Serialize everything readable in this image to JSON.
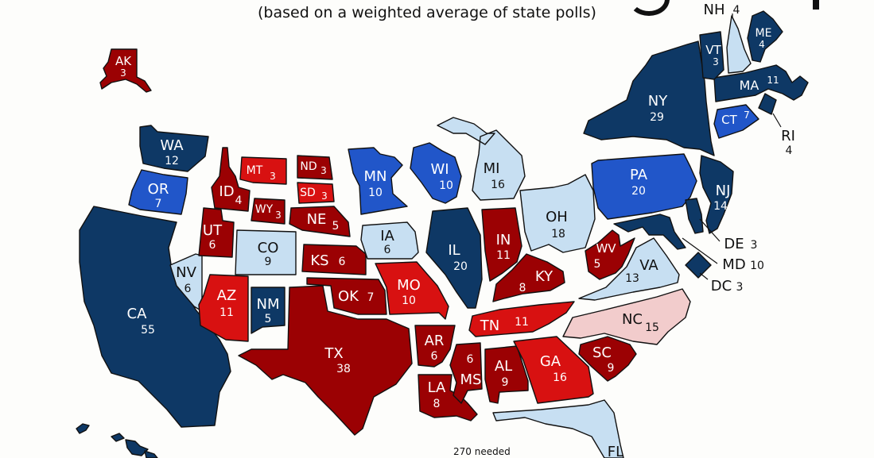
{
  "subtitle": "(based on a weighted average of state polls)",
  "footer": "270 needed",
  "legend_colors": {
    "safe_dem": "#0e3865",
    "likely_dem": "#2156c9",
    "lean_dem": "#c7dff2",
    "tossup_lean_rep": "#f2cccc",
    "likely_rep": "#d81111",
    "safe_rep": "#9b0103"
  },
  "states": {
    "AK": {
      "abbr": "AK",
      "ev": "3"
    },
    "WA": {
      "abbr": "WA",
      "ev": "12"
    },
    "OR": {
      "abbr": "OR",
      "ev": "7"
    },
    "CA": {
      "abbr": "CA",
      "ev": "55"
    },
    "NV": {
      "abbr": "NV",
      "ev": "6"
    },
    "ID": {
      "abbr": "ID",
      "ev": "4"
    },
    "MT": {
      "abbr": "MT",
      "ev": "3"
    },
    "WY": {
      "abbr": "WY",
      "ev": "3"
    },
    "UT": {
      "abbr": "UT",
      "ev": "6"
    },
    "CO": {
      "abbr": "CO",
      "ev": "9"
    },
    "AZ": {
      "abbr": "AZ",
      "ev": "11"
    },
    "NM": {
      "abbr": "NM",
      "ev": "5"
    },
    "ND": {
      "abbr": "ND",
      "ev": "3"
    },
    "SD": {
      "abbr": "SD",
      "ev": "3"
    },
    "NE": {
      "abbr": "NE",
      "ev": "5"
    },
    "KS": {
      "abbr": "KS",
      "ev": "6"
    },
    "OK": {
      "abbr": "OK",
      "ev": "7"
    },
    "TX": {
      "abbr": "TX",
      "ev": "38"
    },
    "MN": {
      "abbr": "MN",
      "ev": "10"
    },
    "IA": {
      "abbr": "IA",
      "ev": "6"
    },
    "MO": {
      "abbr": "MO",
      "ev": "10"
    },
    "AR": {
      "abbr": "AR",
      "ev": "6"
    },
    "LA": {
      "abbr": "LA",
      "ev": "8"
    },
    "WI": {
      "abbr": "WI",
      "ev": "10"
    },
    "IL": {
      "abbr": "IL",
      "ev": "20"
    },
    "MI": {
      "abbr": "MI",
      "ev": "16"
    },
    "IN": {
      "abbr": "IN",
      "ev": "11"
    },
    "OH": {
      "abbr": "OH",
      "ev": "18"
    },
    "KY": {
      "abbr": "KY",
      "ev": "8"
    },
    "TN": {
      "abbr": "TN",
      "ev": "11"
    },
    "MS": {
      "abbr": "MS",
      "ev": "6"
    },
    "AL": {
      "abbr": "AL",
      "ev": "9"
    },
    "GA": {
      "abbr": "GA",
      "ev": "16"
    },
    "FL": {
      "abbr": "FL",
      "ev": ""
    },
    "SC": {
      "abbr": "SC",
      "ev": "9"
    },
    "NC": {
      "abbr": "NC",
      "ev": "15"
    },
    "VA": {
      "abbr": "VA",
      "ev": "13"
    },
    "WV": {
      "abbr": "WV",
      "ev": "5"
    },
    "PA": {
      "abbr": "PA",
      "ev": "20"
    },
    "NY": {
      "abbr": "NY",
      "ev": "29"
    },
    "VT": {
      "abbr": "VT",
      "ev": "3"
    },
    "NH": {
      "abbr": "NH",
      "ev": "4"
    },
    "ME": {
      "abbr": "ME",
      "ev": "4"
    },
    "MA": {
      "abbr": "MA",
      "ev": "11"
    },
    "RI": {
      "abbr": "RI",
      "ev": "4"
    },
    "CT": {
      "abbr": "CT",
      "ev": "7"
    },
    "NJ": {
      "abbr": "NJ",
      "ev": "14"
    },
    "DE": {
      "abbr": "DE",
      "ev": "3"
    },
    "MD": {
      "abbr": "MD",
      "ev": "10"
    },
    "DC": {
      "abbr": "DC",
      "ev": "3"
    }
  }
}
